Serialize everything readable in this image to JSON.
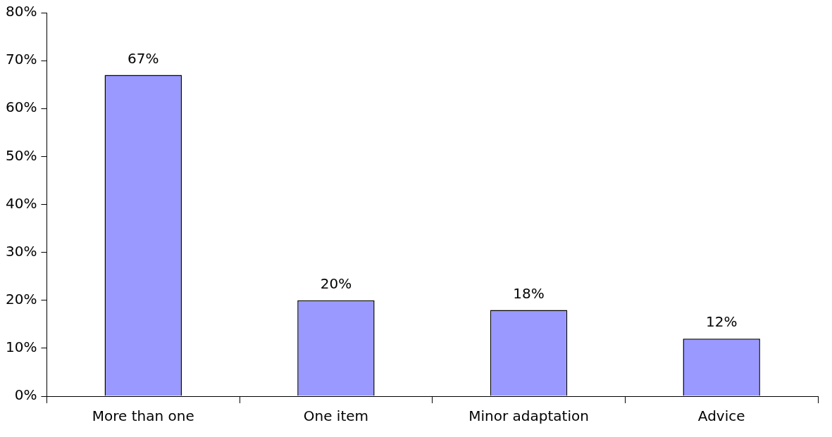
{
  "chart_data": {
    "type": "bar",
    "categories": [
      "More than one",
      "One item",
      "Minor adaptation",
      "Advice"
    ],
    "values": [
      67,
      20,
      18,
      12
    ],
    "color": "#9999ff",
    "value_labels": [
      "67%",
      "20%",
      "18%",
      "12%"
    ],
    "ylim": [
      0,
      80
    ],
    "yticks": [
      {
        "value": 0,
        "label": "0%"
      },
      {
        "value": 10,
        "label": "10%"
      },
      {
        "value": 20,
        "label": "20%"
      },
      {
        "value": 30,
        "label": "30%"
      },
      {
        "value": 40,
        "label": "40%"
      },
      {
        "value": 50,
        "label": "50%"
      },
      {
        "value": 60,
        "label": "60%"
      },
      {
        "value": 70,
        "label": "70%"
      },
      {
        "value": 80,
        "label": "80%"
      }
    ],
    "grid": false,
    "legend": false
  }
}
